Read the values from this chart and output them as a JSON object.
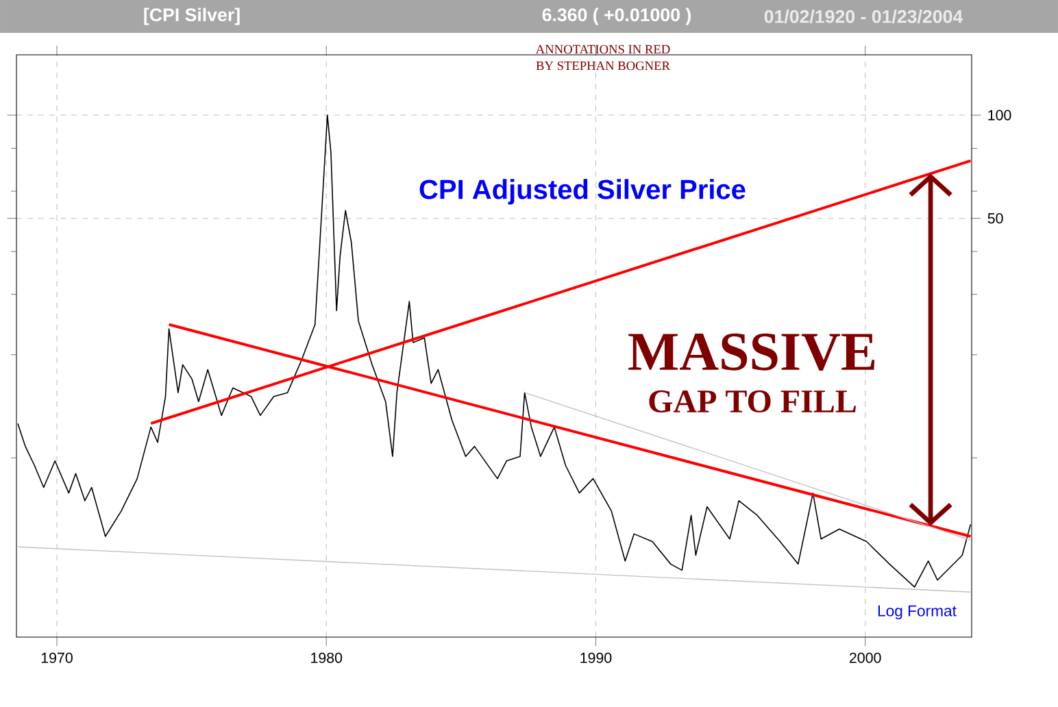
{
  "chart_data": {
    "type": "line",
    "title": "CPI Adjusted Silver Price",
    "annotations": [
      "[CPI Silver]",
      "6.360 ( +0.01000 )",
      "01/02/1920 - 01/23/2004",
      "ANNOTATIONS IN RED",
      "BY STEPHAN BOGNER",
      "MASSIVE",
      "GAP TO FILL",
      "Log Format"
    ],
    "log": "y",
    "grid": true,
    "xlim": [
      1968.5,
      2003.95
    ],
    "xticks": [
      1970,
      1980,
      1990,
      2000
    ],
    "ylim": [
      3,
      150
    ],
    "yticks": [
      {
        "value": 10,
        "label": null
      },
      {
        "value": 20,
        "label": null
      },
      {
        "value": 30,
        "label": null
      },
      {
        "value": 40,
        "label": null
      },
      50,
      {
        "value": 60,
        "label": null
      },
      {
        "value": 80,
        "label": null
      },
      100
    ],
    "series": [
      {
        "color": "#000000",
        "x": [
          1968.55,
          1968.83,
          1969.17,
          1969.51,
          1969.93,
          1970.44,
          1970.7,
          1971.04,
          1971.29,
          1971.8,
          1972.39,
          1972.98,
          1973.49,
          1973.74,
          1974.03,
          1974.16,
          1974.5,
          1974.67,
          1975.01,
          1975.26,
          1975.6,
          1976.11,
          1976.53,
          1977.21,
          1977.55,
          1978.05,
          1978.56,
          1979.07,
          1979.58,
          1979.75,
          1980.04,
          1980.17,
          1980.38,
          1980.51,
          1980.71,
          1980.93,
          1981.19,
          1981.7,
          1982.2,
          1982.46,
          1982.62,
          1983.08,
          1983.22,
          1983.64,
          1983.89,
          1984.15,
          1984.66,
          1985.17,
          1985.5,
          1986.35,
          1986.69,
          1987.19,
          1987.36,
          1987.61,
          1987.95,
          1988.46,
          1988.88,
          1989.39,
          1989.9,
          1990.58,
          1991.09,
          1991.42,
          1992.1,
          1992.78,
          1993.2,
          1993.54,
          1993.71,
          1994.13,
          1994.97,
          1995.31,
          1995.99,
          1996.84,
          1997.51,
          1998.06,
          1998.36,
          1999.04,
          2000.05,
          2000.9,
          2001.83,
          2002.34,
          2002.68,
          2003.6,
          2003.91
        ],
        "values": [
          12.6,
          10.8,
          9.5,
          8.2,
          9.8,
          7.9,
          9.0,
          7.5,
          8.2,
          5.9,
          7.0,
          8.7,
          12.3,
          11.1,
          15.1,
          23.8,
          15.5,
          18.7,
          17.0,
          14.6,
          18.1,
          13.3,
          16.0,
          15.1,
          13.3,
          15.1,
          15.5,
          19.2,
          24.5,
          41,
          100,
          78,
          26.9,
          38.8,
          52.7,
          42.5,
          25.1,
          18.7,
          14.6,
          10.1,
          15.5,
          28.6,
          21.7,
          22.4,
          16.5,
          18.1,
          12.9,
          10.1,
          10.8,
          8.7,
          9.8,
          10.1,
          15.5,
          12.3,
          10.1,
          12.3,
          9.5,
          7.9,
          8.7,
          7.0,
          5.0,
          6.0,
          5.7,
          4.9,
          4.7,
          6.8,
          5.2,
          7.2,
          5.8,
          7.5,
          6.8,
          5.7,
          4.9,
          7.9,
          5.8,
          6.2,
          5.7,
          4.9,
          4.2,
          5.0,
          4.4,
          5.2,
          6.4
        ]
      },
      {
        "color": "#ff0000",
        "x": [
          1973.49,
          2003.91
        ],
        "values": [
          12.6,
          73.6
        ]
      },
      {
        "color": "#ff0000",
        "x": [
          1974.16,
          2003.91
        ],
        "values": [
          24.5,
          5.9
        ]
      },
      {
        "color": "#c0c0c0",
        "x": [
          1968.55,
          2003.91
        ],
        "values": [
          5.5,
          4.06
        ]
      },
      {
        "color": "#c0c0c0",
        "x": [
          1987.36,
          2003.91
        ],
        "values": [
          15.5,
          5.76
        ]
      }
    ]
  }
}
